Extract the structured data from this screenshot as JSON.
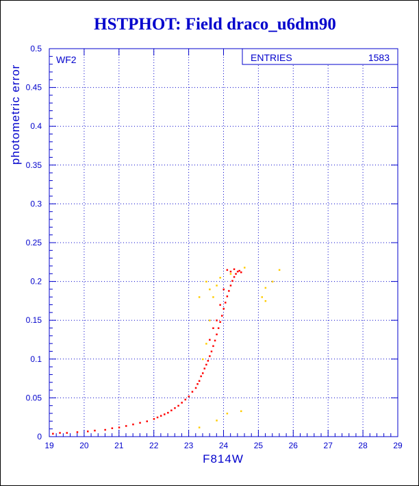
{
  "title": "HSTPHOT: Field draco_u6dm90",
  "chart_data": {
    "type": "scatter",
    "title": "HSTPHOT: Field draco_u6dm90",
    "xlabel": "F814W",
    "ylabel": "photometric error",
    "xlim": [
      19,
      29
    ],
    "ylim": [
      0,
      0.5
    ],
    "xticks": [
      "19",
      "20",
      "21",
      "22",
      "23",
      "24",
      "25",
      "26",
      "27",
      "28",
      "29"
    ],
    "yticks": [
      "0",
      "0.05",
      "0.1",
      "0.15",
      "0.2",
      "0.25",
      "0.3",
      "0.35",
      "0.4",
      "0.45",
      "0.5"
    ],
    "grid": true,
    "panel_label": "WF2",
    "stats": {
      "label": "ENTRIES",
      "value": "1583"
    },
    "colors": {
      "axis": "#0000cc",
      "main_points": "#ff0000",
      "outliers": "#ffcc00"
    },
    "series": [
      {
        "values": [
          [
            19.1,
            0.004
          ],
          [
            19.3,
            0.005
          ],
          [
            19.5,
            0.005
          ],
          [
            19.8,
            0.006
          ],
          [
            20.1,
            0.007
          ],
          [
            20.3,
            0.008
          ],
          [
            20.6,
            0.009
          ],
          [
            20.8,
            0.011
          ],
          [
            21.0,
            0.012
          ],
          [
            21.2,
            0.014
          ],
          [
            21.4,
            0.016
          ],
          [
            21.6,
            0.018
          ],
          [
            21.8,
            0.02
          ],
          [
            22.0,
            0.023
          ],
          [
            22.1,
            0.025
          ],
          [
            22.2,
            0.027
          ],
          [
            22.3,
            0.029
          ],
          [
            22.4,
            0.031
          ],
          [
            22.5,
            0.034
          ],
          [
            22.6,
            0.037
          ],
          [
            22.7,
            0.04
          ],
          [
            22.8,
            0.044
          ],
          [
            22.9,
            0.048
          ],
          [
            23.0,
            0.052
          ],
          [
            23.1,
            0.058
          ],
          [
            23.2,
            0.063
          ],
          [
            23.25,
            0.068
          ],
          [
            23.3,
            0.072
          ],
          [
            23.35,
            0.078
          ],
          [
            23.4,
            0.082
          ],
          [
            23.45,
            0.088
          ],
          [
            23.5,
            0.093
          ],
          [
            23.55,
            0.098
          ],
          [
            23.6,
            0.104
          ],
          [
            23.65,
            0.11
          ],
          [
            23.7,
            0.117
          ],
          [
            23.75,
            0.124
          ],
          [
            23.8,
            0.132
          ],
          [
            23.85,
            0.14
          ],
          [
            23.9,
            0.148
          ],
          [
            23.95,
            0.156
          ],
          [
            24.0,
            0.165
          ],
          [
            24.05,
            0.173
          ],
          [
            24.1,
            0.181
          ],
          [
            24.15,
            0.188
          ],
          [
            24.2,
            0.195
          ],
          [
            24.25,
            0.201
          ],
          [
            24.3,
            0.206
          ],
          [
            24.35,
            0.21
          ],
          [
            24.4,
            0.213
          ],
          [
            24.45,
            0.214
          ],
          [
            24.5,
            0.212
          ],
          [
            24.1,
            0.215
          ],
          [
            24.2,
            0.213
          ],
          [
            24.3,
            0.216
          ],
          [
            23.8,
            0.15
          ],
          [
            23.7,
            0.14
          ],
          [
            23.6,
            0.125
          ],
          [
            23.9,
            0.17
          ],
          [
            24.0,
            0.19
          ]
        ]
      },
      {
        "values": [
          [
            23.5,
            0.2
          ],
          [
            23.6,
            0.19
          ],
          [
            23.7,
            0.18
          ],
          [
            23.6,
            0.15
          ],
          [
            23.5,
            0.12
          ],
          [
            24.2,
            0.21
          ],
          [
            23.9,
            0.205
          ],
          [
            23.8,
            0.195
          ],
          [
            23.4,
            0.1
          ],
          [
            23.3,
            0.18
          ],
          [
            23.8,
            0.021
          ],
          [
            24.5,
            0.033
          ],
          [
            23.3,
            0.012
          ],
          [
            24.1,
            0.03
          ],
          [
            25.1,
            0.18
          ],
          [
            25.2,
            0.175
          ],
          [
            25.2,
            0.192
          ],
          [
            25.4,
            0.2
          ],
          [
            25.6,
            0.215
          ],
          [
            24.6,
            0.218
          ]
        ]
      }
    ]
  }
}
